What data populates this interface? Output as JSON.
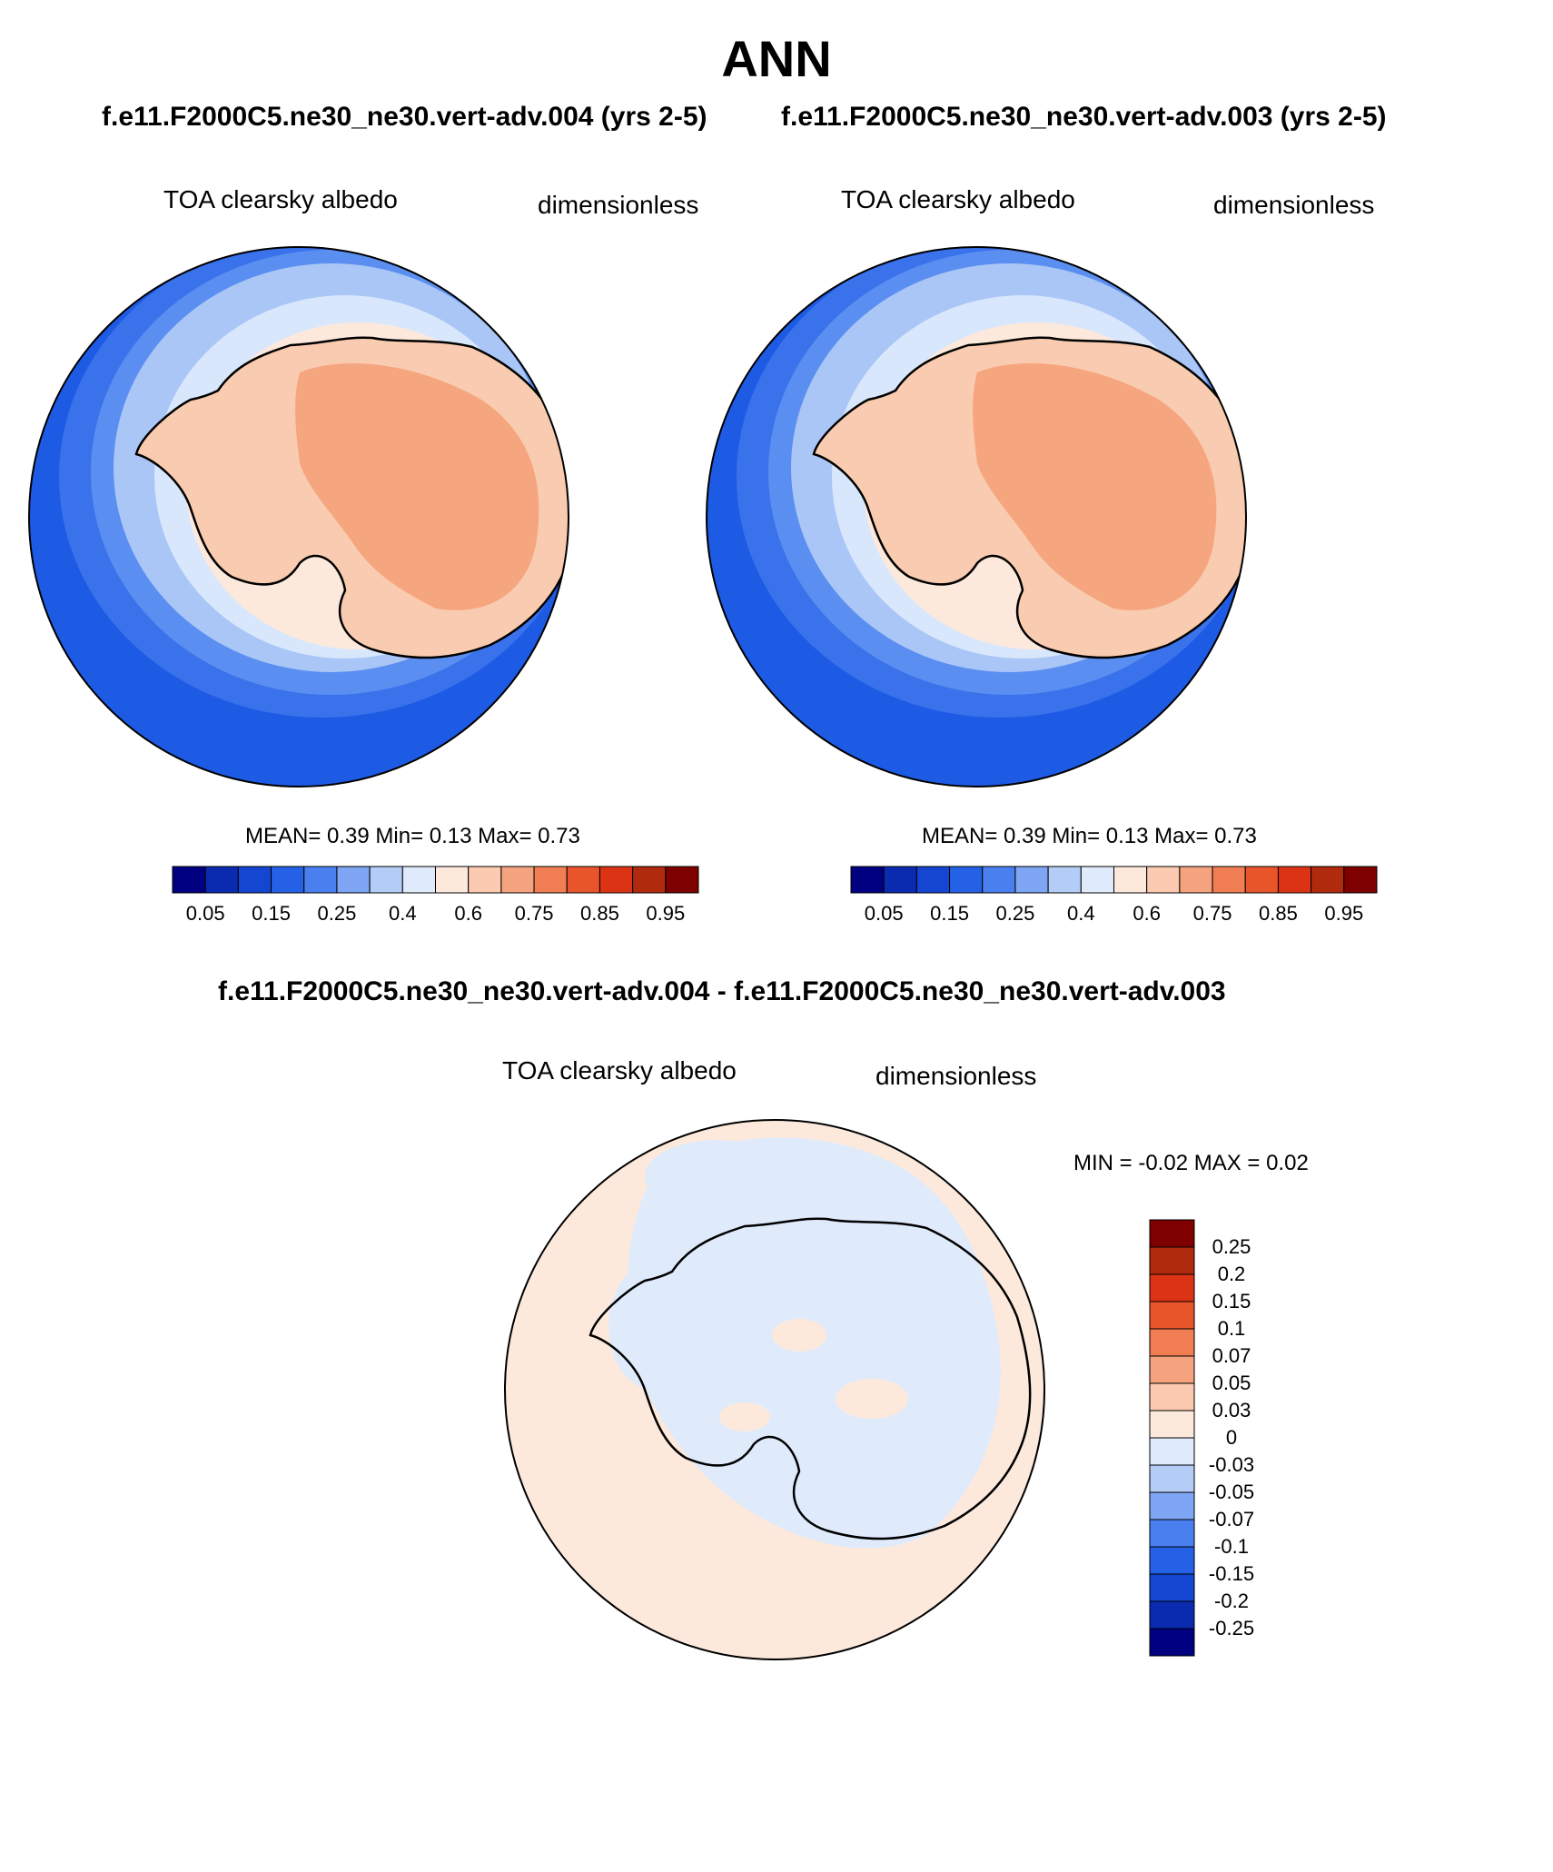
{
  "page": {
    "title": "ANN",
    "case_test": "f.e11.F2000C5.ne30_ne30.vert-adv.004 (yrs 2-5)",
    "case_ctrl": "f.e11.F2000C5.ne30_ne30.vert-adv.003 (yrs 2-5)",
    "diff_title": "f.e11.F2000C5.ne30_ne30.vert-adv.004 - f.e11.F2000C5.ne30_ne30.vert-adv.003"
  },
  "panels": {
    "left": {
      "variable": "TOA clearsky albedo",
      "units": "dimensionless",
      "stats": "MEAN=   0.39  Min=   0.13  Max=   0.73"
    },
    "right": {
      "variable": "TOA clearsky albedo",
      "units": "dimensionless",
      "stats": "MEAN=   0.39  Min=   0.13  Max=   0.73"
    },
    "diff": {
      "variable": "TOA clearsky albedo",
      "units": "dimensionless",
      "stats": "MIN =  -0.02 MAX =   0.02"
    }
  },
  "colors": {
    "field_scale": [
      "#000080",
      "#0a2ab0",
      "#1446d2",
      "#2461e6",
      "#4a7fef",
      "#7ea6f4",
      "#b3cdf7",
      "#dfeafb",
      "#fde9dc",
      "#fbcab0",
      "#f5a37e",
      "#f07e52",
      "#e9552a",
      "#db3313",
      "#b02a0e",
      "#7f0000"
    ],
    "diff_scale": [
      "#000080",
      "#0a2ab0",
      "#1446d2",
      "#2461e6",
      "#4a7fef",
      "#7ea6f4",
      "#b3cdf7",
      "#dfeafb",
      "#fde9dc",
      "#fbcab0",
      "#f5a37e",
      "#f07e52",
      "#e9552a",
      "#db3313",
      "#b02a0e",
      "#7f0000"
    ]
  },
  "chart_data": [
    {
      "type": "heatmap",
      "projection": "south-polar-stereographic",
      "title": "TOA clearsky albedo",
      "units": "dimensionless",
      "case": "f.e11.F2000C5.ne30_ne30.vert-adv.004 (yrs 2-5)",
      "mean": 0.39,
      "min": 0.13,
      "max": 0.73,
      "colorbar_labels": [
        "0.05",
        "0.15",
        "0.25",
        "0.4",
        "0.6",
        "0.75",
        "0.85",
        "0.95"
      ]
    },
    {
      "type": "heatmap",
      "projection": "south-polar-stereographic",
      "title": "TOA clearsky albedo",
      "units": "dimensionless",
      "case": "f.e11.F2000C5.ne30_ne30.vert-adv.003 (yrs 2-5)",
      "mean": 0.39,
      "min": 0.13,
      "max": 0.73,
      "colorbar_labels": [
        "0.05",
        "0.15",
        "0.25",
        "0.4",
        "0.6",
        "0.75",
        "0.85",
        "0.95"
      ]
    },
    {
      "type": "heatmap",
      "projection": "south-polar-stereographic",
      "title": "TOA clearsky albedo",
      "units": "dimensionless",
      "case": "f.e11.F2000C5.ne30_ne30.vert-adv.004 - f.e11.F2000C5.ne30_ne30.vert-adv.003",
      "min": -0.02,
      "max": 0.02,
      "colorbar_labels": [
        "0.25",
        "0.2",
        "0.15",
        "0.1",
        "0.07",
        "0.05",
        "0.03",
        "0",
        "-0.03",
        "-0.05",
        "-0.07",
        "-0.1",
        "-0.15",
        "-0.2",
        "-0.25"
      ]
    }
  ]
}
